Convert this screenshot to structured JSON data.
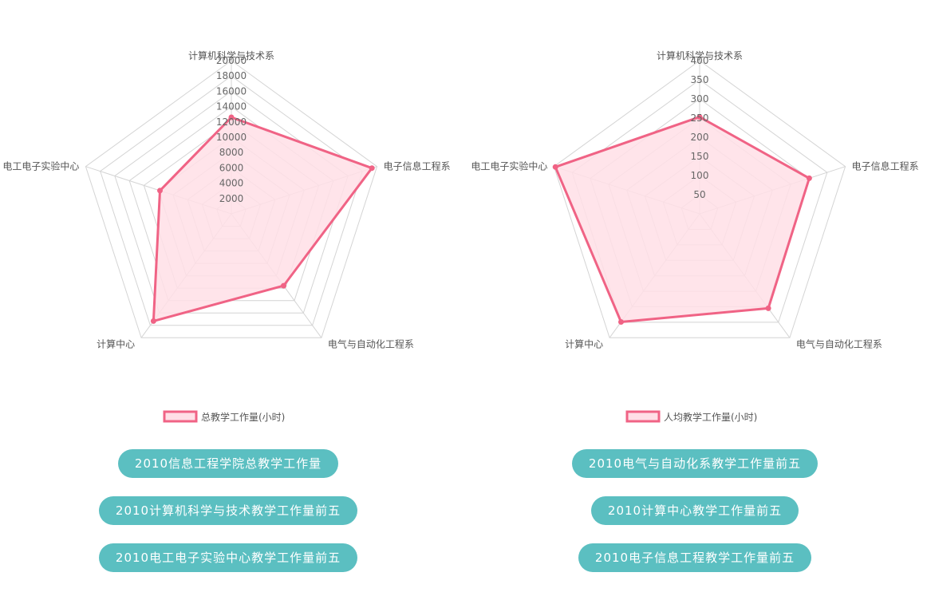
{
  "colors": {
    "series_line": "#f06385",
    "series_fill": "#ffdfe6",
    "grid": "#d4d4d4",
    "button_bg": "#5bbfc1",
    "button_text": "#ffffff",
    "label_text": "#555555"
  },
  "chart_data": [
    {
      "type": "radar",
      "title": "",
      "axes": [
        "计算机科学与技术系",
        "电子信息工程系",
        "电气与自动化工程系",
        "计算中心",
        "电工电子实验中心"
      ],
      "ticks": [
        "2000",
        "4000",
        "6000",
        "8000",
        "10000",
        "12000",
        "14000",
        "16000",
        "18000",
        "20000"
      ],
      "rlim": [
        0,
        20000
      ],
      "grid": true,
      "legend_position": "bottom",
      "series": [
        {
          "name": "总教学工作量(小时)",
          "values": [
            12600,
            19300,
            11600,
            17300,
            9800
          ]
        }
      ]
    },
    {
      "type": "radar",
      "title": "",
      "axes": [
        "计算机科学与技术系",
        "电子信息工程系",
        "电气与自动化工程系",
        "计算中心",
        "电工电子实验中心"
      ],
      "ticks": [
        "50",
        "100",
        "150",
        "200",
        "250",
        "300",
        "350",
        "400"
      ],
      "rlim": [
        0,
        400
      ],
      "grid": true,
      "legend_position": "bottom",
      "series": [
        {
          "name": "人均教学工作量(小时)",
          "values": [
            253,
            301,
            305,
            349,
            396
          ]
        }
      ]
    }
  ],
  "buttons": {
    "left": [
      "2010信息工程学院总教学工作量",
      "2010计算机科学与技术教学工作量前五",
      "2010电工电子实验中心教学工作量前五"
    ],
    "right": [
      "2010电气与自动化系教学工作量前五",
      "2010计算中心教学工作量前五",
      "2010电子信息工程教学工作量前五"
    ]
  }
}
